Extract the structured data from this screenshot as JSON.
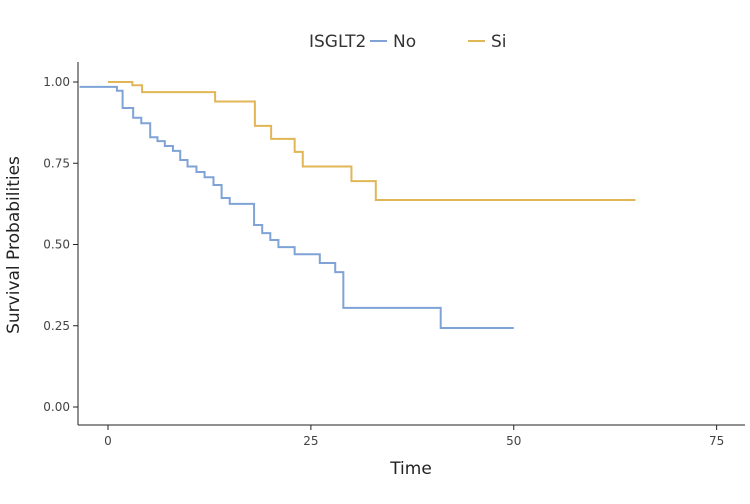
{
  "chart_data": {
    "type": "line",
    "subtype": "kaplan-meier step",
    "xlabel": "Time",
    "ylabel": "Survival Probabilities",
    "xlim": [
      -3.7,
      78.5
    ],
    "ylim": [
      -0.04,
      1.05
    ],
    "xticks": [
      "0",
      "25",
      "50",
      "75"
    ],
    "xtick_values": [
      0,
      25,
      50,
      75
    ],
    "yticks": [
      "0.00",
      "0.25",
      "0.50",
      "0.75",
      "1.00"
    ],
    "ytick_values": [
      0,
      0.25,
      0.5,
      0.75,
      1.0
    ],
    "grid": false,
    "legend": {
      "title": "ISGLT2",
      "placement": "top"
    },
    "series": [
      {
        "name": "No",
        "color": "#7fa3d6",
        "steps": [
          [
            -3.5,
            0.985
          ],
          [
            1.1,
            0.973
          ],
          [
            1.8,
            0.92
          ],
          [
            3.1,
            0.89
          ],
          [
            4.1,
            0.873
          ],
          [
            5.2,
            0.83
          ],
          [
            6.1,
            0.818
          ],
          [
            7,
            0.803
          ],
          [
            8,
            0.788
          ],
          [
            8.9,
            0.76
          ],
          [
            9.8,
            0.74
          ],
          [
            10.9,
            0.723
          ],
          [
            11.9,
            0.707
          ],
          [
            13,
            0.683
          ],
          [
            14,
            0.643
          ],
          [
            15,
            0.625
          ],
          [
            18,
            0.56
          ],
          [
            19,
            0.535
          ],
          [
            20,
            0.514
          ],
          [
            21,
            0.492
          ],
          [
            23,
            0.47
          ],
          [
            26.1,
            0.443
          ],
          [
            28,
            0.415
          ],
          [
            29,
            0.305
          ],
          [
            41,
            0.243
          ],
          [
            50,
            0.243
          ]
        ]
      },
      {
        "name": "Si",
        "color": "#e0b656",
        "steps": [
          [
            0,
            1.0
          ],
          [
            3,
            0.99
          ],
          [
            4.2,
            0.969
          ],
          [
            13.2,
            0.94
          ],
          [
            18.1,
            0.865
          ],
          [
            20.1,
            0.825
          ],
          [
            23,
            0.785
          ],
          [
            24,
            0.74
          ],
          [
            30,
            0.695
          ],
          [
            33,
            0.637
          ],
          [
            65,
            0.637
          ]
        ]
      }
    ]
  }
}
